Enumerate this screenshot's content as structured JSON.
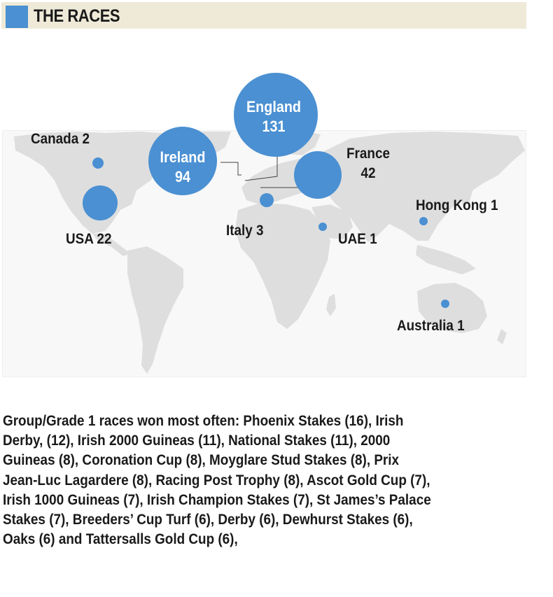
{
  "header": {
    "title": "THE RACES",
    "accent_color": "#4a90d2",
    "band_color": "#efead8"
  },
  "map": {
    "bubble_color": "#4a90d2",
    "land_color": "#dedede",
    "countries": [
      {
        "id": "england",
        "name": "England",
        "value": "131",
        "label": "England 131"
      },
      {
        "id": "ireland",
        "name": "Ireland",
        "value": "94",
        "label": "Ireland 94"
      },
      {
        "id": "france",
        "name": "France",
        "value": "42",
        "label": "France 42"
      },
      {
        "id": "usa",
        "name": "USA",
        "value": "22",
        "label": "USA 22"
      },
      {
        "id": "italy",
        "name": "Italy",
        "value": "3",
        "label": "Italy 3"
      },
      {
        "id": "canada",
        "name": "Canada",
        "value": "2",
        "label": "Canada 2"
      },
      {
        "id": "uae",
        "name": "UAE",
        "value": "1",
        "label": "UAE 1"
      },
      {
        "id": "hongkong",
        "name": "Hong Kong",
        "value": "1",
        "label": "Hong Kong 1"
      },
      {
        "id": "australia",
        "name": "Australia",
        "value": "1",
        "label": "Australia 1"
      }
    ]
  },
  "footer": {
    "lines": [
      "Group/Grade 1 races won most often:  Phoenix Stakes (16), Irish",
      "Derby, (12), Irish 2000 Guineas (11), National Stakes (11), 2000",
      "Guineas (8), Coronation Cup (8), Moyglare Stud Stakes (8), Prix",
      "Jean-Luc Lagardere (8), Racing Post Trophy (8), Ascot Gold Cup (7),",
      "Irish 1000 Guineas (7), Irish Champion Stakes (7), St James’s Palace",
      "Stakes (7), Breeders’ Cup Turf (6), Derby (6), Dewhurst Stakes (6),",
      "Oaks (6) and Tattersalls Gold Cup (6),"
    ]
  }
}
